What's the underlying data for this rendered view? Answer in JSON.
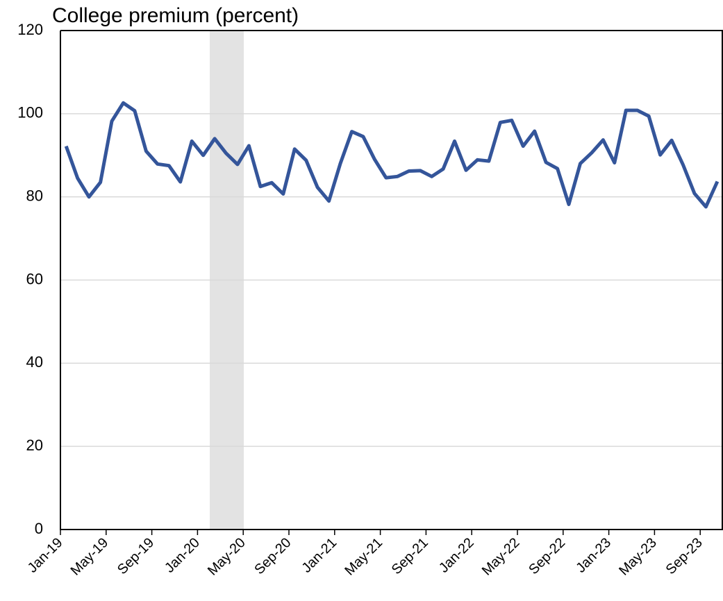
{
  "chart_data": {
    "type": "line",
    "title": "College premium (percent)",
    "categories": [
      "Jan-19",
      null,
      null,
      null,
      "May-19",
      null,
      null,
      null,
      "Sep-19",
      null,
      null,
      null,
      "Jan-20",
      null,
      null,
      null,
      "May-20",
      null,
      null,
      null,
      "Sep-20",
      null,
      null,
      null,
      "Jan-21",
      null,
      null,
      null,
      "May-21",
      null,
      null,
      null,
      "Sep-21",
      null,
      null,
      null,
      "Jan-22",
      null,
      null,
      null,
      "May-22",
      null,
      null,
      null,
      "Sep-22",
      null,
      null,
      null,
      "Jan-23",
      null,
      null,
      null,
      "May-23",
      null,
      null,
      null,
      "Sep-23",
      null
    ],
    "series": [
      {
        "color": "#34559a",
        "values": [
          92.2,
          84.5,
          80.0,
          83.5,
          98.2,
          102.6,
          100.7,
          91.0,
          87.9,
          87.5,
          83.6,
          93.4,
          90.0,
          94.0,
          90.5,
          87.8,
          92.3,
          82.5,
          83.4,
          80.7,
          91.5,
          88.8,
          82.3,
          79.0,
          88.0,
          95.7,
          94.5,
          89.0,
          84.6,
          84.9,
          86.2,
          86.3,
          84.9,
          86.7,
          93.4,
          86.4,
          88.9,
          88.6,
          97.9,
          98.4,
          92.2,
          95.8,
          88.3,
          86.8,
          78.2,
          88.0,
          90.6,
          93.7,
          88.2,
          100.8,
          100.8,
          99.4,
          90.1,
          93.6,
          87.7,
          80.8,
          77.6,
          83.7
        ]
      }
    ],
    "ylim": [
      0,
      120
    ],
    "yticks": [
      0,
      20,
      40,
      60,
      80,
      100,
      120
    ],
    "grid": true
  }
}
